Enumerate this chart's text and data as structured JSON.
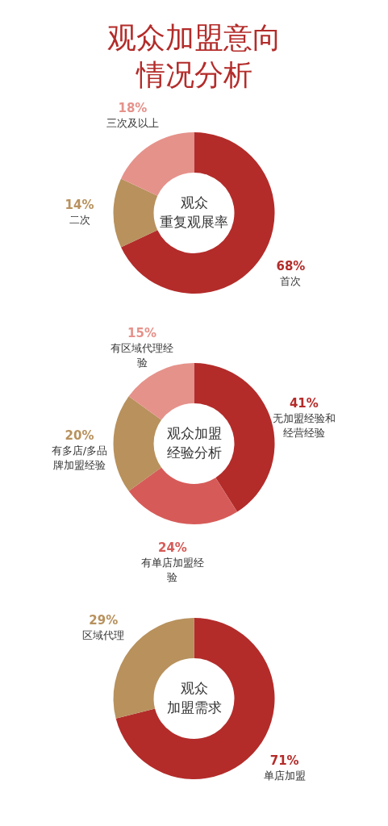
{
  "chart_data": [
    {
      "type": "donut",
      "title": "观众加盟意向情况分析",
      "categories": [
        "首次",
        "二次",
        "三次及以上"
      ],
      "values": [
        68,
        14,
        18
      ],
      "value_labels": [
        "68%",
        "14%",
        "18%"
      ],
      "colors": [
        "#b32c2a",
        "#b8915d",
        "#e5928b"
      ],
      "annotations": [
        "观众",
        "重复观展率"
      ],
      "legend": false
    },
    {
      "type": "donut",
      "categories": [
        "无加盟经验和经营经验",
        "有单店加盟经验",
        "有多店/多品牌加盟经验",
        "有区域代理经验"
      ],
      "values": [
        41,
        24,
        20,
        15
      ],
      "value_labels": [
        "41%",
        "24%",
        "20%",
        "15%"
      ],
      "colors": [
        "#b32c2a",
        "#d65b58",
        "#b8915d",
        "#e5928b"
      ],
      "annotations": [
        "观众加盟",
        "经验分析"
      ],
      "legend": false
    },
    {
      "type": "donut",
      "categories": [
        "单店加盟",
        "区域代理"
      ],
      "values": [
        71,
        29
      ],
      "value_labels": [
        "71%",
        "29%"
      ],
      "colors": [
        "#b32c2a",
        "#b8915d"
      ],
      "annotations": [
        "观众",
        "加盟需求"
      ],
      "legend": false
    }
  ]
}
